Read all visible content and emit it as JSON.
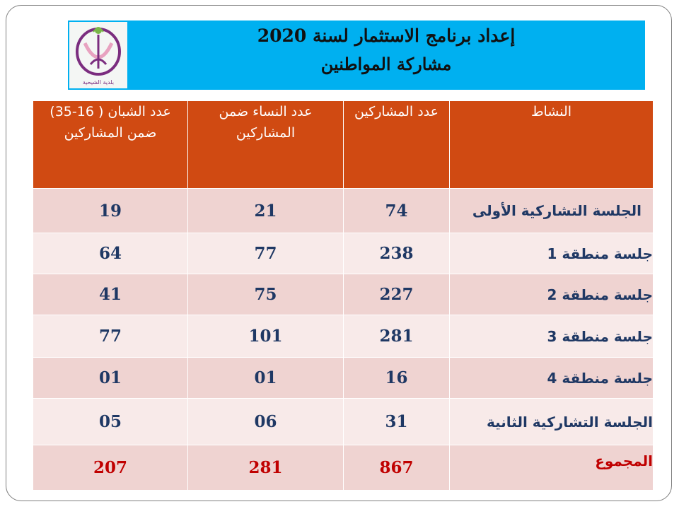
{
  "title": {
    "line1": "إعداد برنامج الاستثمار لسنة 2020",
    "line2": "مشاركة المواطنين"
  },
  "logo": {
    "caption": "بلدية الشيحية",
    "colors": [
      "#7b2d7f",
      "#e8a2c0",
      "#7ab648"
    ]
  },
  "colors": {
    "banner": "#00b0f0",
    "header": "#d04a12",
    "row_dark": "#efd3d1",
    "row_light": "#f8eae9",
    "text": "#1f3864",
    "total": "#c00000"
  },
  "table": {
    "headers": [
      "النشاط",
      "عدد المشاركين",
      "عدد النساء ضمن المشاركين",
      "عدد الشبان ( 16-35) ضمن المشاركين"
    ],
    "rows": [
      {
        "activity": "الجلسة التشاركية الأولى",
        "participants": "74",
        "women": "21",
        "youth": "19"
      },
      {
        "activity": "جلسة منطقة 1",
        "participants": "238",
        "women": "77",
        "youth": "64"
      },
      {
        "activity": "جلسة منطقة 2",
        "participants": "227",
        "women": "75",
        "youth": "41"
      },
      {
        "activity": "جلسة منطقة 3",
        "participants": "281",
        "women": "101",
        "youth": "77"
      },
      {
        "activity": "جلسة منطقة 4",
        "participants": "16",
        "women": "01",
        "youth": "01"
      },
      {
        "activity": "الجلسة التشاركية الثانية",
        "participants": "31",
        "women": "06",
        "youth": "05"
      }
    ],
    "total": {
      "activity": "المجموع",
      "participants": "867",
      "women": "281",
      "youth": "207"
    }
  }
}
